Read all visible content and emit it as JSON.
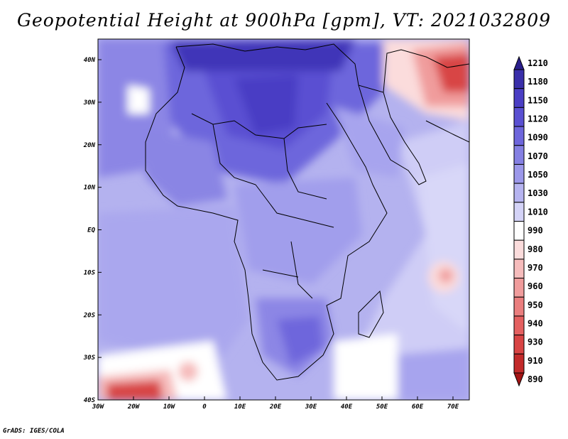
{
  "title": "Geopotential Height at 900hPa [gpm], VT: 2021032809",
  "credit": "GrADS: IGES/COLA",
  "map": {
    "lat_labels": [
      "40N",
      "30N",
      "20N",
      "10N",
      "EQ",
      "10S",
      "20S",
      "30S",
      "40S"
    ],
    "lon_labels": [
      "30W",
      "20W",
      "10W",
      "0",
      "10E",
      "20E",
      "30E",
      "40E",
      "50E",
      "60E",
      "70E"
    ]
  },
  "colorbar": {
    "levels": [
      "1210",
      "1180",
      "1150",
      "1120",
      "1090",
      "1070",
      "1050",
      "1030",
      "1010",
      "990",
      "980",
      "970",
      "960",
      "950",
      "940",
      "930",
      "910",
      "890"
    ],
    "colors": [
      "#2a1e8c",
      "#3a2faa",
      "#4a3ec4",
      "#5a50d2",
      "#6e66dc",
      "#8580e3",
      "#9c98ea",
      "#b6b4f0",
      "#d4d3f7",
      "#ffffff",
      "#fbdcdc",
      "#f6bcbc",
      "#f09c9c",
      "#ea7e7e",
      "#e46060",
      "#d84444",
      "#c22a2a",
      "#a41414"
    ]
  }
}
